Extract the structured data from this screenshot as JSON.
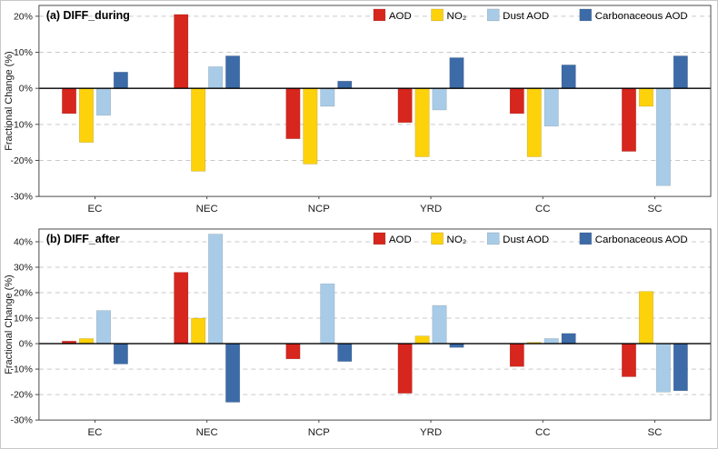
{
  "figure": {
    "background": "#ffffff",
    "border_color": "#c8c8c8"
  },
  "style": {
    "grid_color": "#c9c9c9",
    "axis_color": "#4a4a4a",
    "zero_line_color": "#000000",
    "text_color": "#1a1a1a",
    "bar_edge": "rgba(0,0,0,0.18)"
  },
  "chart_data": [
    {
      "type": "bar",
      "panel_label": "(a) DIFF_during",
      "ylabel": "Fractional Change (%)",
      "ylim": [
        -30,
        23
      ],
      "yticks": [
        -30,
        -20,
        -10,
        0,
        10,
        20
      ],
      "ytick_suffix": "%",
      "grid": "horizontal-dashed",
      "legend_position": "top-right-inside",
      "categories": [
        "EC",
        "NEC",
        "NCP",
        "YRD",
        "CC",
        "SC"
      ],
      "series": [
        {
          "name": "AOD",
          "key": "aod",
          "color": "#d7261d",
          "values": [
            -7,
            20.5,
            -14,
            -9.5,
            -7,
            -17.5
          ]
        },
        {
          "name": "NO₂",
          "key": "no2",
          "color": "#fdd20a",
          "values": [
            -15,
            -23,
            -21,
            -19,
            -19,
            -5
          ]
        },
        {
          "name": "Dust AOD",
          "key": "dust-aod",
          "color": "#a8cce8",
          "values": [
            -7.5,
            6,
            -5,
            -6,
            -10.5,
            -27
          ]
        },
        {
          "name": "Carbonaceous AOD",
          "key": "carbonaceous-aod",
          "color": "#3c6ba8",
          "values": [
            4.5,
            9,
            2,
            8.5,
            6.5,
            9
          ]
        }
      ]
    },
    {
      "type": "bar",
      "panel_label": "(b) DIFF_after",
      "ylabel": "Fractional Change (%)",
      "ylim": [
        -30,
        45
      ],
      "yticks": [
        -30,
        -20,
        -10,
        0,
        10,
        20,
        30,
        40
      ],
      "ytick_suffix": "%",
      "grid": "horizontal-dashed",
      "legend_position": "top-right-inside",
      "categories": [
        "EC",
        "NEC",
        "NCP",
        "YRD",
        "CC",
        "SC"
      ],
      "series": [
        {
          "name": "AOD",
          "key": "aod",
          "color": "#d7261d",
          "values": [
            1,
            28,
            -6,
            -19.5,
            -9,
            -13
          ]
        },
        {
          "name": "NO₂",
          "key": "no2",
          "color": "#fdd20a",
          "values": [
            2,
            10,
            0,
            3,
            0.5,
            20.5
          ]
        },
        {
          "name": "Dust AOD",
          "key": "dust-aod",
          "color": "#a8cce8",
          "values": [
            13,
            43,
            23.5,
            15,
            2,
            -19
          ]
        },
        {
          "name": "Carbonaceous AOD",
          "key": "carbonaceous-aod",
          "color": "#3c6ba8",
          "values": [
            -8,
            -23,
            -7,
            -1.5,
            4,
            -18.5
          ]
        }
      ]
    }
  ]
}
